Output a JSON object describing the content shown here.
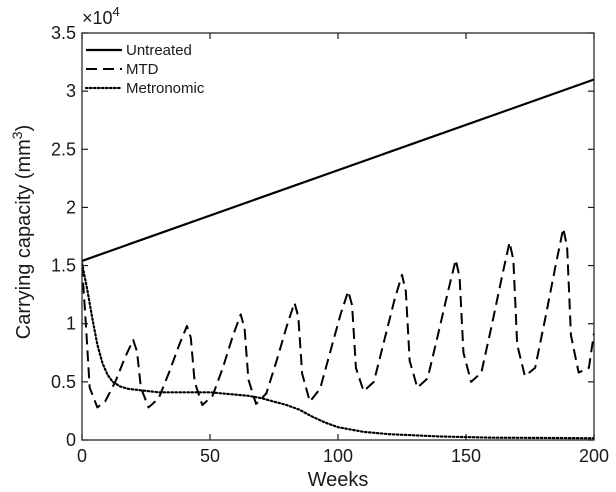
{
  "chart_data": {
    "type": "line",
    "xlabel": "Weeks",
    "ylabel": "Carrying capacity (mm",
    "ylabel_superscript": "3",
    "ylabel_close": ")",
    "y_exponent_base": "×10",
    "y_exponent_power": "4",
    "xlim": [
      0,
      200
    ],
    "ylim": [
      0,
      3.5
    ],
    "xticks": [
      0,
      50,
      100,
      150,
      200
    ],
    "yticks": [
      0,
      0.5,
      1,
      1.5,
      2,
      2.5,
      3,
      3.5
    ],
    "xtick_labels": [
      "0",
      "50",
      "100",
      "150",
      "200"
    ],
    "ytick_labels": [
      "0",
      "0.5",
      "1",
      "1.5",
      "2",
      "2.5",
      "3",
      "3.5"
    ],
    "legend_position": "top-left",
    "grid": false,
    "series": [
      {
        "name": "Untreated",
        "style": "solid",
        "color": "#000000",
        "x": [
          0,
          200
        ],
        "y": [
          1.54,
          3.1
        ]
      },
      {
        "name": "MTD",
        "style": "dashed",
        "color": "#000000",
        "x": [
          0,
          1.5,
          3,
          6,
          9,
          13,
          17,
          20,
          21.5,
          23,
          26,
          30,
          34,
          38,
          41,
          42.5,
          44,
          47,
          51,
          55,
          59,
          62,
          63.5,
          65,
          68,
          72,
          76,
          80,
          83,
          84.5,
          86,
          89,
          93,
          97,
          101,
          104,
          105.5,
          107,
          110,
          114,
          118,
          122,
          125,
          126.5,
          128,
          131,
          135,
          139,
          143,
          146,
          147.5,
          149,
          152,
          156,
          160,
          164,
          167,
          168.5,
          170,
          173,
          177,
          181,
          185,
          188,
          189.5,
          191,
          194,
          198,
          200
        ],
        "y": [
          1.5,
          1.0,
          0.45,
          0.28,
          0.33,
          0.5,
          0.72,
          0.86,
          0.76,
          0.45,
          0.28,
          0.36,
          0.58,
          0.82,
          0.98,
          0.88,
          0.5,
          0.3,
          0.38,
          0.62,
          0.9,
          1.08,
          0.96,
          0.52,
          0.31,
          0.4,
          0.68,
          0.98,
          1.18,
          1.06,
          0.57,
          0.33,
          0.44,
          0.76,
          1.08,
          1.28,
          1.16,
          0.62,
          0.42,
          0.5,
          0.85,
          1.2,
          1.42,
          1.28,
          0.68,
          0.45,
          0.53,
          0.9,
          1.28,
          1.55,
          1.4,
          0.75,
          0.5,
          0.58,
          0.98,
          1.4,
          1.7,
          1.55,
          0.82,
          0.55,
          0.62,
          1.05,
          1.5,
          1.82,
          1.66,
          0.9,
          0.58,
          0.62,
          0.92
        ]
      },
      {
        "name": "Metronomic",
        "style": "dotted",
        "color": "#000000",
        "x": [
          0,
          2,
          4,
          6,
          8,
          10,
          12,
          15,
          18,
          22,
          26,
          30,
          40,
          50,
          60,
          65,
          70,
          75,
          80,
          85,
          90,
          95,
          100,
          110,
          120,
          130,
          140,
          150,
          160,
          180,
          200
        ],
        "y": [
          1.52,
          1.3,
          1.05,
          0.82,
          0.66,
          0.56,
          0.5,
          0.46,
          0.44,
          0.43,
          0.42,
          0.41,
          0.41,
          0.41,
          0.39,
          0.38,
          0.36,
          0.33,
          0.3,
          0.26,
          0.2,
          0.15,
          0.11,
          0.07,
          0.05,
          0.04,
          0.03,
          0.025,
          0.02,
          0.018,
          0.015
        ]
      }
    ]
  }
}
